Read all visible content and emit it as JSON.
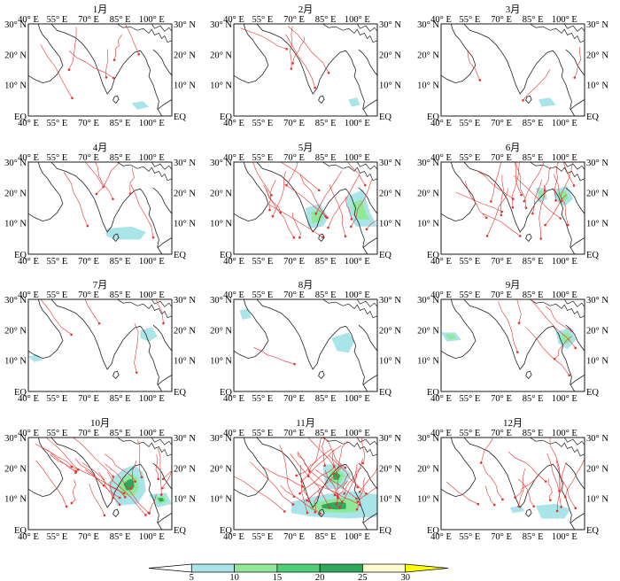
{
  "chart_data": {
    "type": "map",
    "panel_titles": [
      "1月",
      "2月",
      "3月",
      "4月",
      "5月",
      "6月",
      "7月",
      "8月",
      "9月",
      "10月",
      "11月",
      "12月"
    ],
    "lon_ticks": [
      "40° E",
      "55° E",
      "70° E",
      "85° E",
      "100° E"
    ],
    "lat_ticks_left": [
      "30° N",
      "20° N",
      "10° N",
      "EQ"
    ],
    "lat_ticks_right": [
      "30° N",
      "20° N",
      "10° N",
      "EQ"
    ],
    "lon_range": [
      40,
      110
    ],
    "lat_range": [
      0,
      30
    ],
    "colorbar": {
      "boundaries": [
        5,
        10,
        15,
        20,
        25,
        30
      ],
      "tick_labels": [
        "5",
        "10",
        "15",
        "20",
        "25",
        "30"
      ],
      "colors": [
        "#ffffff",
        "#a9e4e8",
        "#90e99a",
        "#4fce76",
        "#2fa85b",
        "#fcfbcf",
        "#ffff00"
      ]
    },
    "shading_color": "#a9e4e8",
    "track_color": "#e8302b",
    "coast_color": "#222222"
  }
}
